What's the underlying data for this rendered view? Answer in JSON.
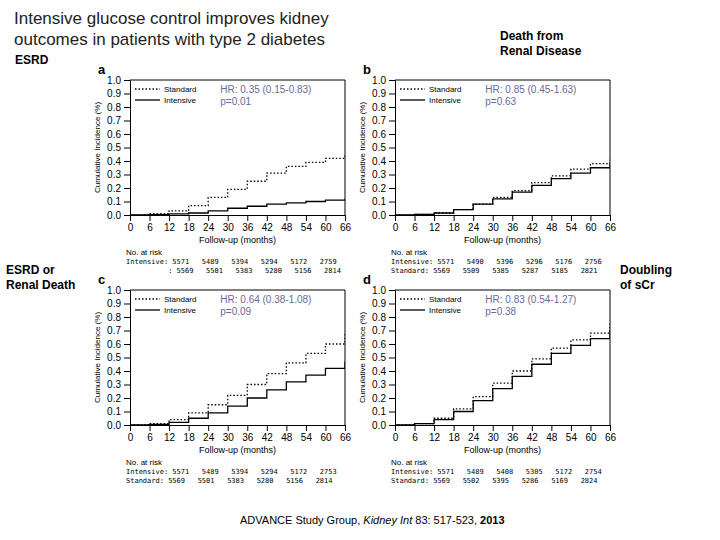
{
  "title": [
    "Intensive glucose control improves kidney",
    "outcomes in patients with type 2 diabetes"
  ],
  "annotations": [
    "ADVANCE Study Group, ",
    "Kidney Int",
    " 83: 517-523, ",
    "2013"
  ],
  "chart_data": [
    {
      "type": "step",
      "title": "a",
      "subtitle": "ESRD",
      "xlabel": "Follow-up (months)",
      "ylabel": "Cumulative Incidence (%)",
      "xlim": [
        0,
        66
      ],
      "xticks": [
        0,
        6,
        12,
        18,
        24,
        30,
        36,
        42,
        48,
        54,
        60,
        66
      ],
      "ylim": [
        0,
        1
      ],
      "yticks": [
        {
          "value": 0,
          "label": "0.0"
        },
        0.1,
        0.2,
        0.3,
        0.4,
        0.5,
        0.6,
        0.7,
        0.8,
        0.9,
        {
          "value": 1,
          "label": "1.0"
        }
      ],
      "grid": false,
      "legend": "upper left",
      "series": [
        {
          "name": "Standard",
          "color": "#000000",
          "line_style": "dotted",
          "x": [
            0,
            6,
            12,
            18,
            24,
            30,
            36,
            42,
            48,
            54,
            60,
            66
          ],
          "values": [
            0.0,
            0.01,
            0.03,
            0.07,
            0.13,
            0.19,
            0.25,
            0.31,
            0.36,
            0.39,
            0.42,
            0.44
          ]
        },
        {
          "name": "Intensive",
          "color": "#000000",
          "line_style": "solid",
          "x": [
            0,
            6,
            12,
            18,
            24,
            30,
            36,
            42,
            48,
            54,
            60,
            66
          ],
          "values": [
            0.0,
            0.003,
            0.008,
            0.015,
            0.03,
            0.05,
            0.065,
            0.08,
            0.09,
            0.1,
            0.11,
            0.12
          ]
        }
      ],
      "annotations": [
        "HR: 0.35 (0.15-0.83)",
        "p=0.01",
        "No. at risk",
        "Intensive: 5571   5489   5394   5294   5172   2759",
        "          : 5569   5501   5383   5280   5156   2814"
      ]
    },
    {
      "type": "step",
      "title": "b",
      "subtitle": "Death from\nRenal Disease",
      "xlabel": "Follow-up (months)",
      "ylabel": "Cumulative Incidence (%)",
      "xlim": [
        0,
        66
      ],
      "xticks": [
        0,
        6,
        12,
        18,
        24,
        30,
        36,
        42,
        48,
        54,
        60,
        66
      ],
      "ylim": [
        0,
        1
      ],
      "yticks": [
        {
          "value": 0,
          "label": "0.0"
        },
        0.1,
        0.2,
        0.3,
        0.4,
        0.5,
        0.6,
        0.7,
        0.8,
        0.9,
        {
          "value": 1,
          "label": "1.0"
        }
      ],
      "grid": false,
      "legend": "upper left",
      "series": [
        {
          "name": "Standard",
          "color": "#000000",
          "line_style": "dotted",
          "x": [
            0,
            6,
            12,
            18,
            24,
            30,
            36,
            42,
            48,
            54,
            60,
            66
          ],
          "values": [
            0.0,
            0.005,
            0.015,
            0.04,
            0.08,
            0.13,
            0.18,
            0.24,
            0.29,
            0.34,
            0.38,
            0.41
          ]
        },
        {
          "name": "Intensive",
          "color": "#000000",
          "line_style": "solid",
          "x": [
            0,
            6,
            12,
            18,
            24,
            30,
            36,
            42,
            48,
            54,
            60,
            66
          ],
          "values": [
            0.0,
            0.005,
            0.015,
            0.04,
            0.08,
            0.12,
            0.17,
            0.22,
            0.27,
            0.31,
            0.35,
            0.38
          ]
        }
      ],
      "annotations": [
        "HR: 0.85 (0.45-1.63)",
        "p=0.63",
        "No. at risk",
        "Intensive: 5571   5490   5396   5296   5176   2756",
        "Standard: 5569   5509   5385   5287   5185   2821"
      ]
    },
    {
      "type": "step",
      "title": "c",
      "subtitle": "ESRD or\nRenal Death",
      "xlabel": "Follow-up (months)",
      "ylabel": "Cumulative Incidence (%)",
      "xlim": [
        0,
        66
      ],
      "xticks": [
        0,
        6,
        12,
        18,
        24,
        30,
        36,
        42,
        48,
        54,
        60,
        66
      ],
      "ylim": [
        0,
        1
      ],
      "yticks": [
        {
          "value": 0,
          "label": "0.0"
        },
        0.1,
        0.2,
        0.3,
        0.4,
        0.5,
        0.6,
        0.7,
        0.8,
        0.9,
        {
          "value": 1,
          "label": "1.0"
        }
      ],
      "grid": false,
      "legend": "upper left",
      "series": [
        {
          "name": "Standard",
          "color": "#000000",
          "line_style": "dotted",
          "x": [
            0,
            6,
            12,
            18,
            24,
            30,
            36,
            42,
            48,
            54,
            60,
            66
          ],
          "values": [
            0.0,
            0.01,
            0.04,
            0.09,
            0.15,
            0.22,
            0.3,
            0.38,
            0.46,
            0.53,
            0.6,
            0.68
          ]
        },
        {
          "name": "Intensive",
          "color": "#000000",
          "line_style": "solid",
          "x": [
            0,
            6,
            12,
            18,
            24,
            30,
            36,
            42,
            48,
            54,
            60,
            66
          ],
          "values": [
            0.0,
            0.005,
            0.02,
            0.05,
            0.09,
            0.14,
            0.2,
            0.26,
            0.32,
            0.37,
            0.42,
            0.47
          ]
        }
      ],
      "annotations": [
        "HR: 0.64 (0.38-1.08)",
        "p=0.09",
        "No. at risk",
        "Intensive: 5571   5489   5394   5294   5172   2753",
        "Standard: 5569   5501   5383   5280   5156   2814"
      ]
    },
    {
      "type": "step",
      "title": "d",
      "subtitle": "Doubling\nof sCr",
      "xlabel": "Follow-up (months)",
      "ylabel": "Cumulative Incidence (%)",
      "xlim": [
        0,
        66
      ],
      "xticks": [
        0,
        6,
        12,
        18,
        24,
        30,
        36,
        42,
        48,
        54,
        60,
        66
      ],
      "ylim": [
        0,
        1
      ],
      "yticks": [
        {
          "value": 0,
          "label": "0.0"
        },
        0.1,
        0.2,
        0.3,
        0.4,
        0.5,
        0.6,
        0.7,
        0.8,
        0.9,
        {
          "value": 1,
          "label": "1.0"
        }
      ],
      "grid": false,
      "legend": "upper left",
      "series": [
        {
          "name": "Standard",
          "color": "#000000",
          "line_style": "dotted",
          "x": [
            0,
            6,
            12,
            18,
            24,
            30,
            36,
            42,
            48,
            54,
            60,
            66
          ],
          "values": [
            0.0,
            0.01,
            0.05,
            0.12,
            0.21,
            0.31,
            0.4,
            0.49,
            0.57,
            0.63,
            0.68,
            0.75
          ]
        },
        {
          "name": "Intensive",
          "color": "#000000",
          "line_style": "solid",
          "x": [
            0,
            6,
            12,
            18,
            24,
            30,
            36,
            42,
            48,
            54,
            60,
            66
          ],
          "values": [
            0.0,
            0.01,
            0.04,
            0.1,
            0.18,
            0.27,
            0.36,
            0.45,
            0.53,
            0.59,
            0.64,
            0.7
          ]
        }
      ],
      "annotations": [
        "HR: 0.83 (0.54-1.27)",
        "p=0.38",
        "No. at risk",
        "Intensive: 5571   5489   5408   5305   5172   2754",
        "Standard: 5569   5502   5395   5286   5169   2824"
      ]
    }
  ]
}
